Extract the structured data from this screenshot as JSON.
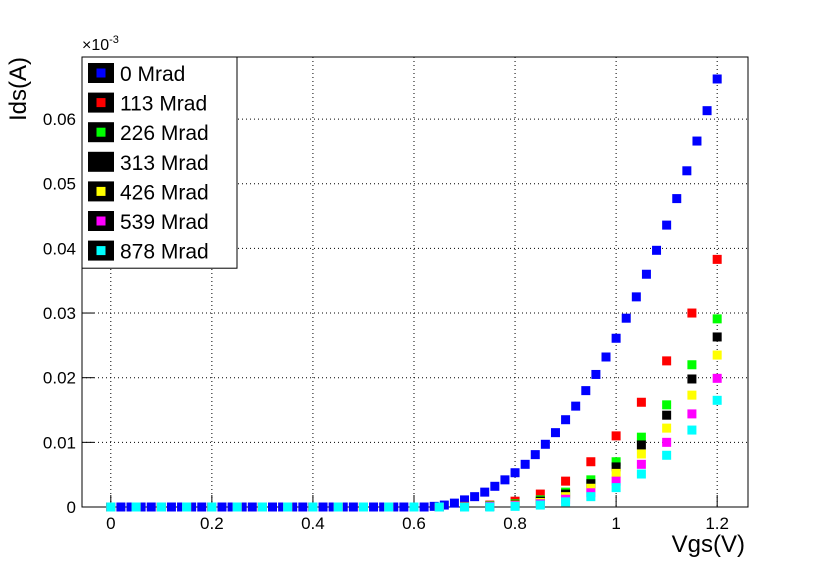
{
  "chart_data": {
    "type": "scatter",
    "x_label": "Vgs(V)",
    "y_label": "Ids(A)",
    "y_multiplier": "×10",
    "y_multiplier_exponent": "-3",
    "xlim": [
      -0.057,
      1.261
    ],
    "ylim": [
      0,
      0.0696
    ],
    "xticks": [
      0,
      0.2,
      0.4,
      0.6,
      0.8,
      1,
      1.2
    ],
    "yticks": [
      0,
      0.01,
      0.02,
      0.03,
      0.04,
      0.05,
      0.06
    ],
    "grid": true,
    "legend": "upper left",
    "series": [
      {
        "name": "0 Mrad",
        "color": "#0000ff",
        "x": [
          0,
          0.02,
          0.04,
          0.06,
          0.08,
          0.1,
          0.12,
          0.14,
          0.16,
          0.18,
          0.2,
          0.22,
          0.24,
          0.26,
          0.28,
          0.3,
          0.32,
          0.34,
          0.36,
          0.38,
          0.4,
          0.42,
          0.44,
          0.46,
          0.48,
          0.5,
          0.52,
          0.54,
          0.56,
          0.58,
          0.6,
          0.62,
          0.64,
          0.66,
          0.68,
          0.7,
          0.72,
          0.74,
          0.76,
          0.78,
          0.8,
          0.82,
          0.84,
          0.86,
          0.88,
          0.9,
          0.92,
          0.94,
          0.96,
          0.98,
          1,
          1.02,
          1.04,
          1.06,
          1.08,
          1.1,
          1.12,
          1.14,
          1.16,
          1.18,
          1.2
        ],
        "values": [
          0,
          0,
          0,
          0,
          0,
          0,
          0,
          0,
          0,
          0,
          0,
          0,
          0,
          0,
          0,
          0,
          0,
          0,
          0,
          0,
          0,
          0,
          0,
          0,
          0,
          0,
          0,
          0,
          0,
          0,
          0,
          0,
          0.0001,
          0.0003,
          0.0006,
          0.0011,
          0.0016,
          0.0023,
          0.0032,
          0.0042,
          0.0053,
          0.0066,
          0.0081,
          0.0097,
          0.0115,
          0.0135,
          0.0156,
          0.018,
          0.0205,
          0.0232,
          0.0261,
          0.0292,
          0.0325,
          0.036,
          0.0397,
          0.0436,
          0.0477,
          0.052,
          0.0566,
          0.0613,
          0.0662
        ]
      },
      {
        "name": "113 Mrad",
        "color": "#ff0000",
        "x": [
          0,
          0.05,
          0.1,
          0.15,
          0.2,
          0.25,
          0.3,
          0.35,
          0.4,
          0.45,
          0.5,
          0.55,
          0.6,
          0.65,
          0.7,
          0.75,
          0.8,
          0.85,
          0.9,
          0.95,
          1,
          1.05,
          1.1,
          1.15,
          1.2
        ],
        "values": [
          0,
          0,
          0,
          0,
          0,
          0,
          0,
          0,
          0,
          0,
          0,
          0,
          0,
          0,
          0.0001,
          0.0003,
          0.0009,
          0.002,
          0.004,
          0.007,
          0.011,
          0.0162,
          0.0226,
          0.03,
          0.0383
        ]
      },
      {
        "name": "226 Mrad",
        "color": "#00ff00",
        "x": [
          0,
          0.05,
          0.1,
          0.15,
          0.2,
          0.25,
          0.3,
          0.35,
          0.4,
          0.45,
          0.5,
          0.55,
          0.6,
          0.65,
          0.7,
          0.75,
          0.8,
          0.85,
          0.9,
          0.95,
          1,
          1.05,
          1.1,
          1.15,
          1.2
        ],
        "values": [
          0,
          0,
          0,
          0,
          0,
          0,
          0,
          0,
          0,
          0,
          0,
          0,
          0,
          0,
          0,
          0.0002,
          0.0005,
          0.0011,
          0.0023,
          0.0042,
          0.007,
          0.0108,
          0.0158,
          0.022,
          0.0291
        ]
      },
      {
        "name": "313 Mrad",
        "color": "#000000",
        "x": [
          0,
          0.05,
          0.1,
          0.15,
          0.2,
          0.25,
          0.3,
          0.35,
          0.4,
          0.45,
          0.5,
          0.55,
          0.6,
          0.65,
          0.7,
          0.75,
          0.8,
          0.85,
          0.9,
          0.95,
          1,
          1.05,
          1.1,
          1.15,
          1.2
        ],
        "values": [
          0,
          0,
          0,
          0,
          0,
          0,
          0,
          0,
          0,
          0,
          0,
          0,
          0,
          0,
          0,
          0.0001,
          0.0004,
          0.0009,
          0.002,
          0.0036,
          0.0062,
          0.0096,
          0.0142,
          0.0198,
          0.0263
        ]
      },
      {
        "name": "426 Mrad",
        "color": "#ffff00",
        "x": [
          0,
          0.05,
          0.1,
          0.15,
          0.2,
          0.25,
          0.3,
          0.35,
          0.4,
          0.45,
          0.5,
          0.55,
          0.6,
          0.65,
          0.7,
          0.75,
          0.8,
          0.85,
          0.9,
          0.95,
          1,
          1.05,
          1.1,
          1.15,
          1.2
        ],
        "values": [
          0,
          0,
          0,
          0,
          0,
          0,
          0,
          0,
          0,
          0,
          0,
          0,
          0,
          0,
          0,
          0.0001,
          0.0003,
          0.0007,
          0.0016,
          0.0029,
          0.0052,
          0.0082,
          0.0122,
          0.0173,
          0.0235
        ]
      },
      {
        "name": "539 Mrad",
        "color": "#ff00ff",
        "x": [
          0,
          0.05,
          0.1,
          0.15,
          0.2,
          0.25,
          0.3,
          0.35,
          0.4,
          0.45,
          0.5,
          0.55,
          0.6,
          0.65,
          0.7,
          0.75,
          0.8,
          0.85,
          0.9,
          0.95,
          1,
          1.05,
          1.1,
          1.15,
          1.2
        ],
        "values": [
          0,
          0,
          0,
          0,
          0,
          0,
          0,
          0,
          0,
          0,
          0,
          0,
          0,
          0,
          0,
          0.0001,
          0.0002,
          0.0005,
          0.0012,
          0.0022,
          0.004,
          0.0066,
          0.01,
          0.0144,
          0.0199
        ]
      },
      {
        "name": "878 Mrad",
        "color": "#00ffff",
        "x": [
          0,
          0.05,
          0.1,
          0.15,
          0.2,
          0.25,
          0.3,
          0.35,
          0.4,
          0.45,
          0.5,
          0.55,
          0.6,
          0.65,
          0.7,
          0.75,
          0.8,
          0.85,
          0.9,
          0.95,
          1,
          1.05,
          1.1,
          1.15,
          1.2
        ],
        "values": [
          0,
          0,
          0,
          0,
          0,
          0,
          0,
          0,
          0,
          0,
          0,
          0,
          0,
          0,
          0,
          0,
          0.0001,
          0.0003,
          0.0008,
          0.0016,
          0.003,
          0.0051,
          0.008,
          0.0119,
          0.0165
        ]
      }
    ]
  }
}
